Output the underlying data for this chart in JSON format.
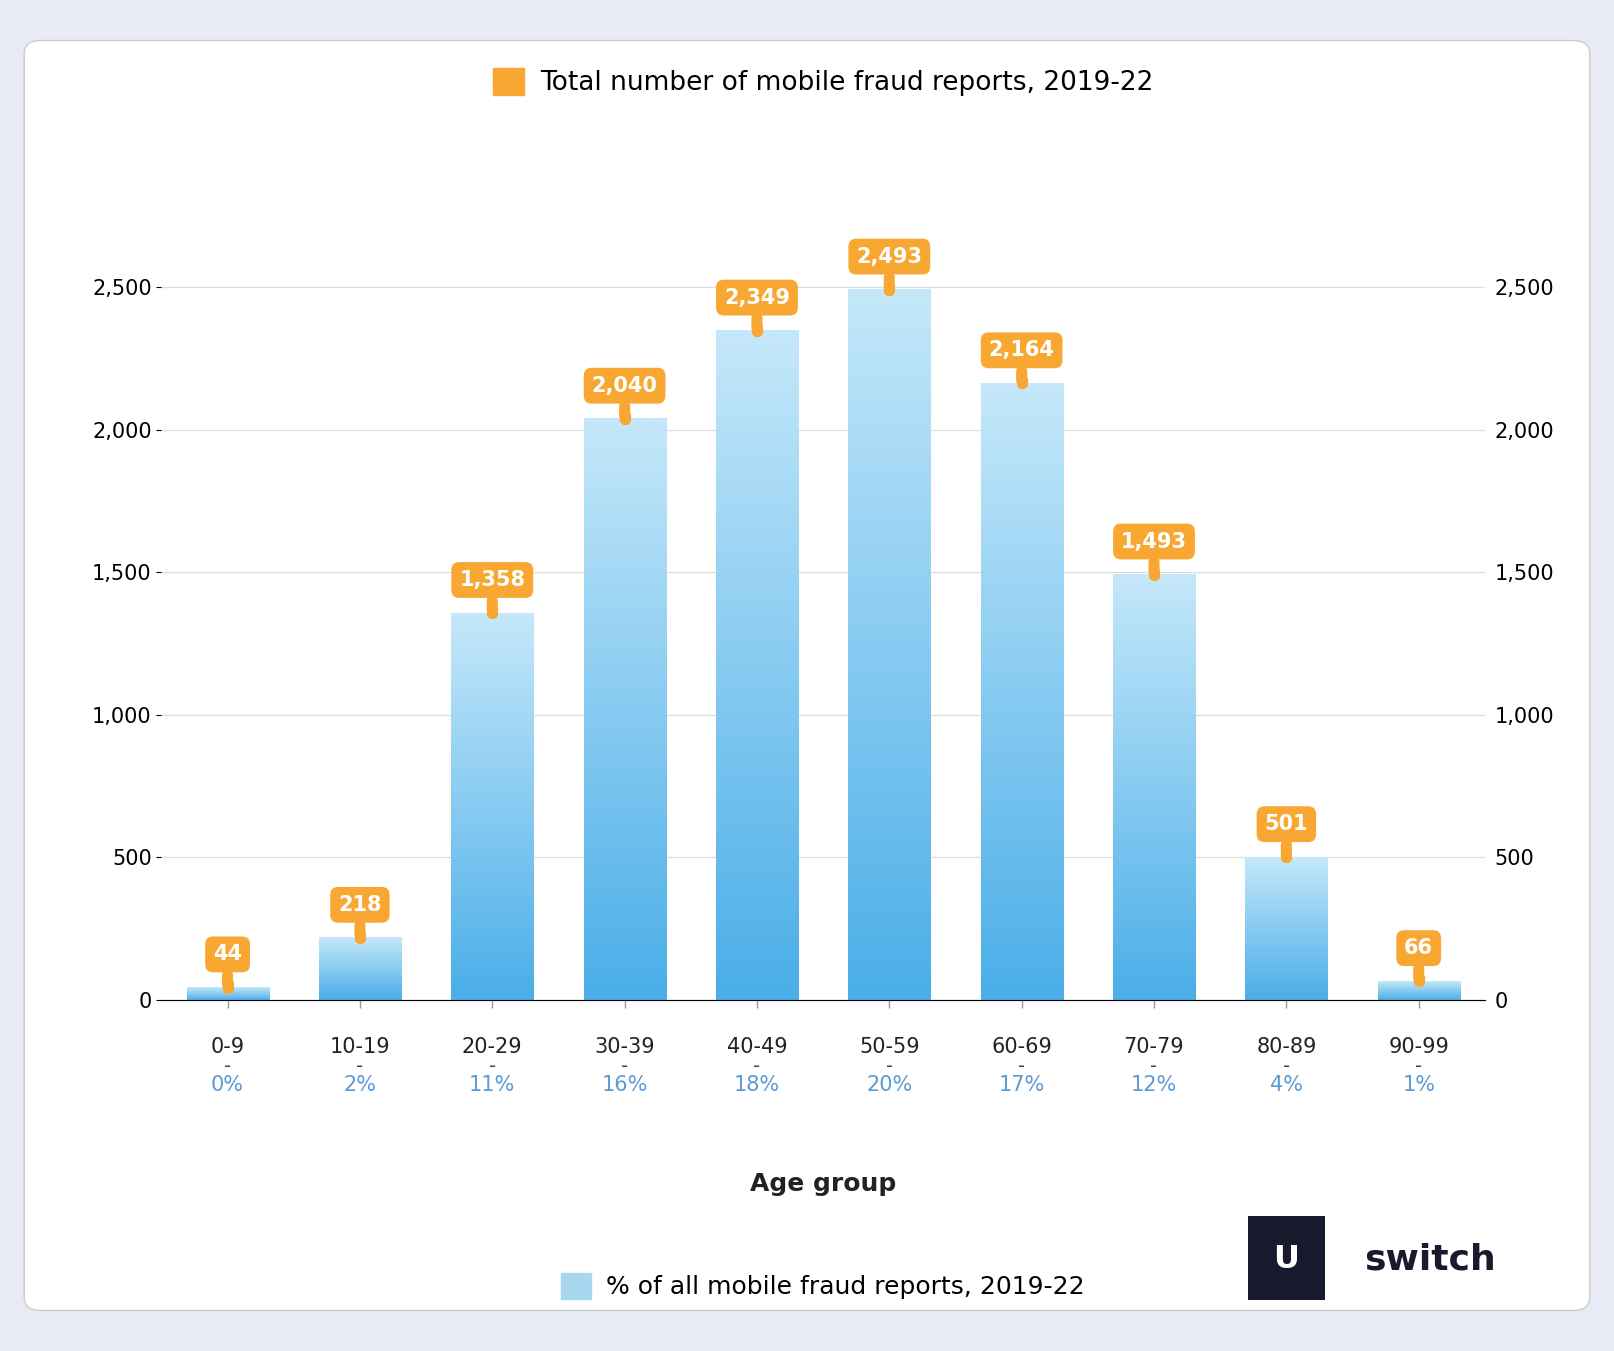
{
  "categories": [
    "0-9",
    "10-19",
    "20-29",
    "30-39",
    "40-49",
    "50-59",
    "60-69",
    "70-79",
    "80-89",
    "90-99"
  ],
  "values": [
    44,
    218,
    1358,
    2040,
    2349,
    2493,
    2164,
    1493,
    501,
    66
  ],
  "percentages": [
    "0%",
    "2%",
    "11%",
    "16%",
    "18%",
    "20%",
    "17%",
    "12%",
    "4%",
    "1%"
  ],
  "ylim": [
    0,
    2750
  ],
  "yticks": [
    0,
    500,
    1000,
    1500,
    2000,
    2500
  ],
  "bar_color_top": "#4AAEE8",
  "bar_color_bottom": "#C5E8FA",
  "background_outer": "#E8EAF5",
  "background_inner": "#FFFFFF",
  "annotation_bg_color": "#F8A832",
  "annotation_text_color": "#FFFFFF",
  "legend1_text": "Total number of mobile fraud reports, 2019-22",
  "legend2_text": "% of all mobile fraud reports, 2019-22",
  "xlabel": "Age group",
  "legend_square_color1": "#F8A832",
  "legend_square_color2": "#A8D8F0",
  "title_fontsize": 19,
  "tick_fontsize": 15,
  "label_fontsize": 18,
  "annotation_fontsize": 15,
  "grid_color": "#DDDDDD",
  "axis_label_color": "#222222",
  "pct_color": "#5B9BD5",
  "dash_color": "#444444"
}
